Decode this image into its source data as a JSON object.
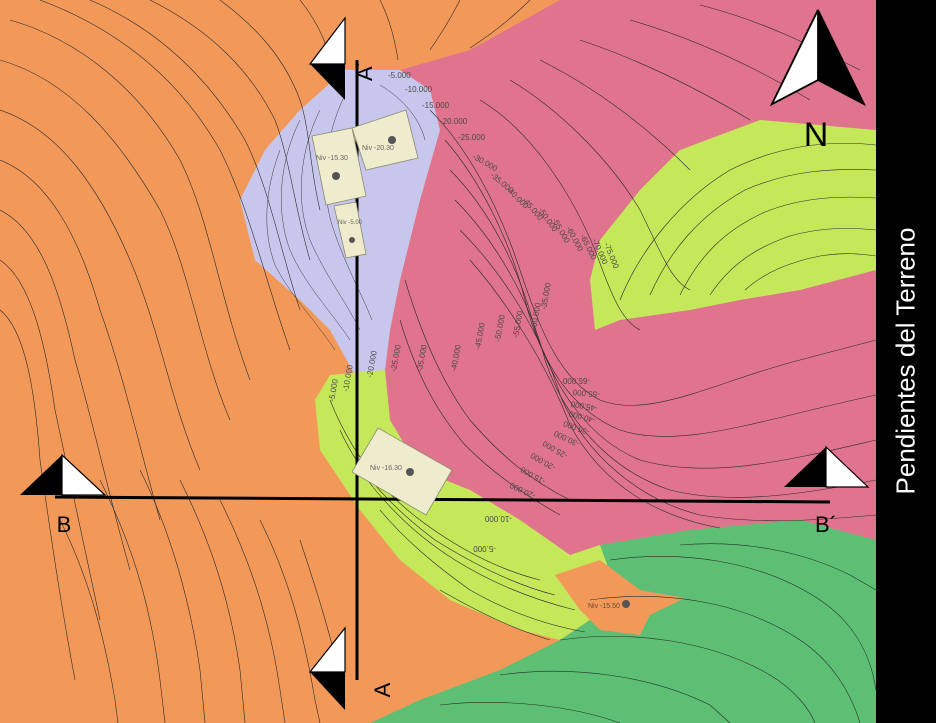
{
  "title": "Pendientes del Terreno",
  "north_label": "N",
  "sections": {
    "a_label": "A",
    "a_prime_label": "A´",
    "b_label": "B",
    "b_prime_label": "B´"
  },
  "levels": [
    {
      "label": "Niv -15.30"
    },
    {
      "label": "Niv -20.30"
    },
    {
      "label": "Niv -5.00"
    },
    {
      "label": "Niv -16.30"
    },
    {
      "label": "Niv -15.50"
    }
  ],
  "contour_labels": [
    "-5.000",
    "-10.000",
    "-15.000",
    "-20.000",
    "-25.000",
    "-30.000",
    "-35.000",
    "-40.000",
    "-45.000",
    "-50.000",
    "-55.000",
    "-60.000",
    "-65.000",
    "-70.000",
    "-75.000"
  ],
  "slope_colors": {
    "orange": "#f2995a",
    "pink": "#e0738e",
    "lavender": "#c7c7ee",
    "lime": "#c4e85a",
    "green": "#5cbf74",
    "building": "#eeeccc"
  }
}
